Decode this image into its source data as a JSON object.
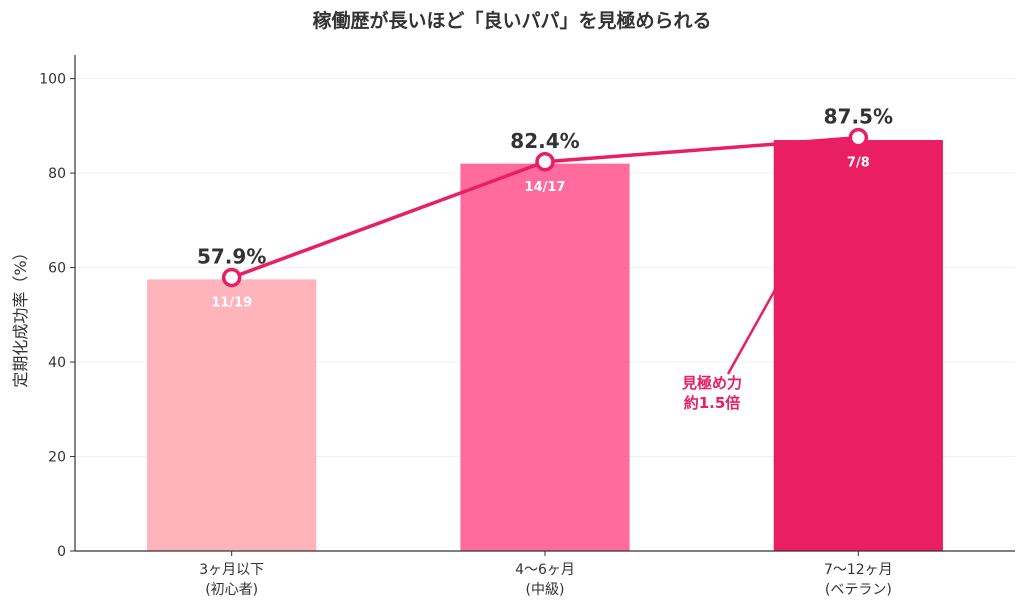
{
  "chart_data": {
    "type": "bar",
    "title": "稼働歴が長いほど「良いパパ」を見極められる",
    "ylabel": "定期化成功率（%）",
    "xlabel": "",
    "ylim": [
      0,
      105
    ],
    "yticks": [
      "0",
      "20",
      "40",
      "60",
      "80",
      "100"
    ],
    "grid": true,
    "categories": [
      {
        "line1": "3ヶ月以下",
        "line2": "(初心者)"
      },
      {
        "line1": "4〜6ヶ月",
        "line2": "(中級)"
      },
      {
        "line1": "7〜12ヶ月",
        "line2": "(ベテラン)"
      }
    ],
    "values": [
      57.9,
      82.4,
      87.5
    ],
    "bar_values": [
      57.5,
      82.0,
      87.0
    ],
    "value_labels": [
      "57.9%",
      "82.4%",
      "87.5%"
    ],
    "fraction_labels": [
      "11/19",
      "14/17",
      "7/8"
    ],
    "bar_colors": [
      "#ffb3ba",
      "#ff6b9d",
      "#e91e63"
    ],
    "line_color": "#e91e63",
    "annotation": {
      "line1": "見極め力",
      "line2": "約1.5倍",
      "color": "#e91e63"
    }
  }
}
